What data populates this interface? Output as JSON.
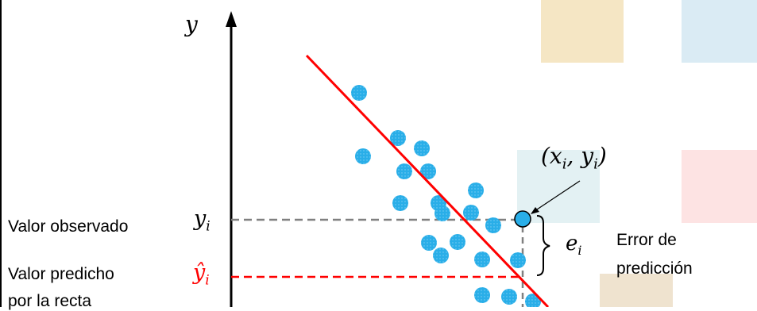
{
  "labels": {
    "observed": "Valor observado",
    "predicted": "Valor predicho",
    "predicted_cont": "por la recta",
    "error_line1": "Error de",
    "error_line2": "predicción"
  },
  "math": {
    "axis_y": "y",
    "y_i_base": "y",
    "y_i_sub": "i",
    "yhat_base": "ŷ",
    "yhat_sub": "i",
    "e_base": "e",
    "e_sub": "i",
    "point_label": "(x",
    "point_label_sub1": "i",
    "point_label_mid": ", y",
    "point_label_sub2": "i",
    "point_label_end": ")"
  },
  "colors": {
    "points": "#29aee8",
    "regression_line": "#ff0000",
    "observed_guide": "#808080",
    "predicted_guide": "#ff0000",
    "bg_tan": "#f5e6c4",
    "bg_blue": "#daebf4",
    "bg_pink": "#fde3e3",
    "bg_aqua": "#e3f1f3",
    "bg_beige": "#efe3cf"
  }
}
